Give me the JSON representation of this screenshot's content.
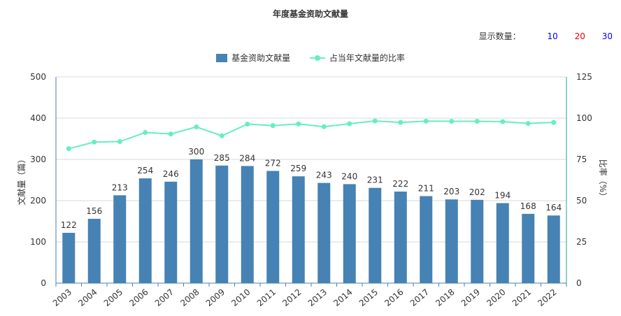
{
  "chart_title": "年度基金资助文献量",
  "count_selector": {
    "label": "显示数量：",
    "options": [
      {
        "label": "10",
        "color": "#0000ee"
      },
      {
        "label": "20",
        "color": "#ee0000"
      },
      {
        "label": "30",
        "color": "#0000ee"
      }
    ]
  },
  "legend": [
    {
      "label": "基金资助文献量",
      "color": "#4682b4"
    },
    {
      "label": "占当年文献量的比率",
      "color": "#66eec2"
    }
  ],
  "chart_data": {
    "type": "bar",
    "categories": [
      "2003",
      "2004",
      "2005",
      "2006",
      "2007",
      "2008",
      "2009",
      "2010",
      "2011",
      "2012",
      "2013",
      "2014",
      "2015",
      "2016",
      "2017",
      "2018",
      "2019",
      "2020",
      "2021",
      "2022"
    ],
    "series": [
      {
        "name": "基金资助文献量",
        "type": "bar",
        "axis": "left",
        "color": "#4682b4",
        "values": [
          122,
          156,
          213,
          254,
          246,
          300,
          285,
          284,
          272,
          259,
          243,
          240,
          231,
          222,
          211,
          203,
          202,
          194,
          168,
          164
        ]
      },
      {
        "name": "占当年文献量的比率",
        "type": "line",
        "axis": "right",
        "color": "#66eec2",
        "values": [
          81.5,
          85.5,
          85.8,
          91.3,
          90.4,
          94.7,
          89.3,
          96.4,
          95.5,
          96.5,
          94.8,
          96.6,
          98.3,
          97.4,
          98.2,
          98.1,
          98.1,
          97.9,
          96.8,
          97.4
        ]
      }
    ],
    "ylabel_left": "文献量（篇）",
    "ylabel_right": "比率（%）",
    "ylim_left": [
      0,
      500
    ],
    "ylim_right": [
      0,
      125
    ],
    "yticks_left": [
      "0",
      "100",
      "200",
      "300",
      "400",
      "500"
    ],
    "yticks_right": [
      "0",
      "25",
      "50",
      "75",
      "100",
      "125"
    ],
    "grid": true,
    "legend_position": "top-center"
  }
}
